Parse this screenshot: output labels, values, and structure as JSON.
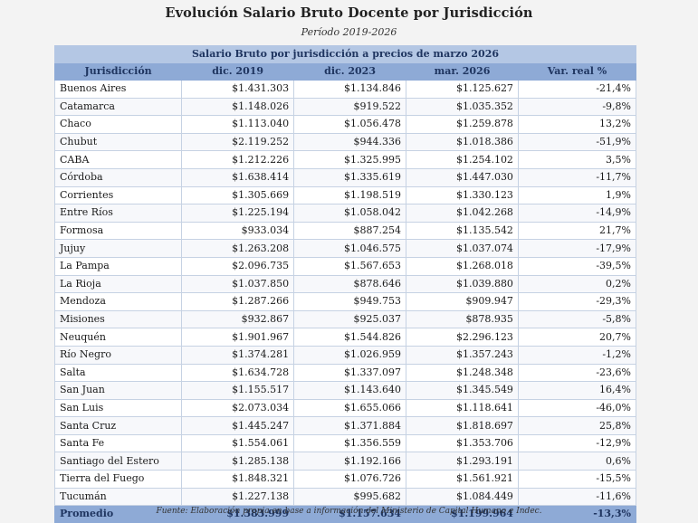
{
  "title": "Evolución Salario Bruto Docente por Jurisdicción",
  "subtitle": "Período 2019-2026",
  "table": {
    "caption": "Salario Bruto por jurisdicción a precios de marzo 2026",
    "headers": [
      "Jurisdicción",
      "dic. 2019",
      "dic. 2023",
      "mar. 2026",
      "Var. real %"
    ],
    "rows": [
      [
        "Buenos Aires",
        "$1.431.303",
        "$1.134.846",
        "$1.125.627",
        "-21,4%"
      ],
      [
        "Catamarca",
        "$1.148.026",
        "$919.522",
        "$1.035.352",
        "-9,8%"
      ],
      [
        "Chaco",
        "$1.113.040",
        "$1.056.478",
        "$1.259.878",
        "13,2%"
      ],
      [
        "Chubut",
        "$2.119.252",
        "$944.336",
        "$1.018.386",
        "-51,9%"
      ],
      [
        "CABA",
        "$1.212.226",
        "$1.325.995",
        "$1.254.102",
        "3,5%"
      ],
      [
        "Córdoba",
        "$1.638.414",
        "$1.335.619",
        "$1.447.030",
        "-11,7%"
      ],
      [
        "Corrientes",
        "$1.305.669",
        "$1.198.519",
        "$1.330.123",
        "1,9%"
      ],
      [
        "Entre Ríos",
        "$1.225.194",
        "$1.058.042",
        "$1.042.268",
        "-14,9%"
      ],
      [
        "Formosa",
        "$933.034",
        "$887.254",
        "$1.135.542",
        "21,7%"
      ],
      [
        "Jujuy",
        "$1.263.208",
        "$1.046.575",
        "$1.037.074",
        "-17,9%"
      ],
      [
        "La Pampa",
        "$2.096.735",
        "$1.567.653",
        "$1.268.018",
        "-39,5%"
      ],
      [
        "La Rioja",
        "$1.037.850",
        "$878.646",
        "$1.039.880",
        "0,2%"
      ],
      [
        "Mendoza",
        "$1.287.266",
        "$949.753",
        "$909.947",
        "-29,3%"
      ],
      [
        "Misiones",
        "$932.867",
        "$925.037",
        "$878.935",
        "-5,8%"
      ],
      [
        "Neuquén",
        "$1.901.967",
        "$1.544.826",
        "$2.296.123",
        "20,7%"
      ],
      [
        "Río Negro",
        "$1.374.281",
        "$1.026.959",
        "$1.357.243",
        "-1,2%"
      ],
      [
        "Salta",
        "$1.634.728",
        "$1.337.097",
        "$1.248.348",
        "-23,6%"
      ],
      [
        "San Juan",
        "$1.155.517",
        "$1.143.640",
        "$1.345.549",
        "16,4%"
      ],
      [
        "San Luis",
        "$2.073.034",
        "$1.655.066",
        "$1.118.641",
        "-46,0%"
      ],
      [
        "Santa Cruz",
        "$1.445.247",
        "$1.371.884",
        "$1.818.697",
        "25,8%"
      ],
      [
        "Santa Fe",
        "$1.554.061",
        "$1.356.559",
        "$1.353.706",
        "-12,9%"
      ],
      [
        "Santiago del Estero",
        "$1.285.138",
        "$1.192.166",
        "$1.293.191",
        "0,6%"
      ],
      [
        "Tierra del Fuego",
        "$1.848.321",
        "$1.076.726",
        "$1.561.921",
        "-15,5%"
      ],
      [
        "Tucumán",
        "$1.227.138",
        "$995.682",
        "$1.084.449",
        "-11,6%"
      ]
    ],
    "total": [
      "Promedio",
      "$1.383.999",
      "$1.157.634",
      "$1.199.964",
      "-13,3%"
    ]
  },
  "source": "Fuente: Elaboración propia en base a información del Ministerio de Capital Humano e Indec.",
  "colors": {
    "header_dark": "#8eaad6",
    "header_light": "#b4c7e4",
    "header_text": "#1f3560"
  }
}
